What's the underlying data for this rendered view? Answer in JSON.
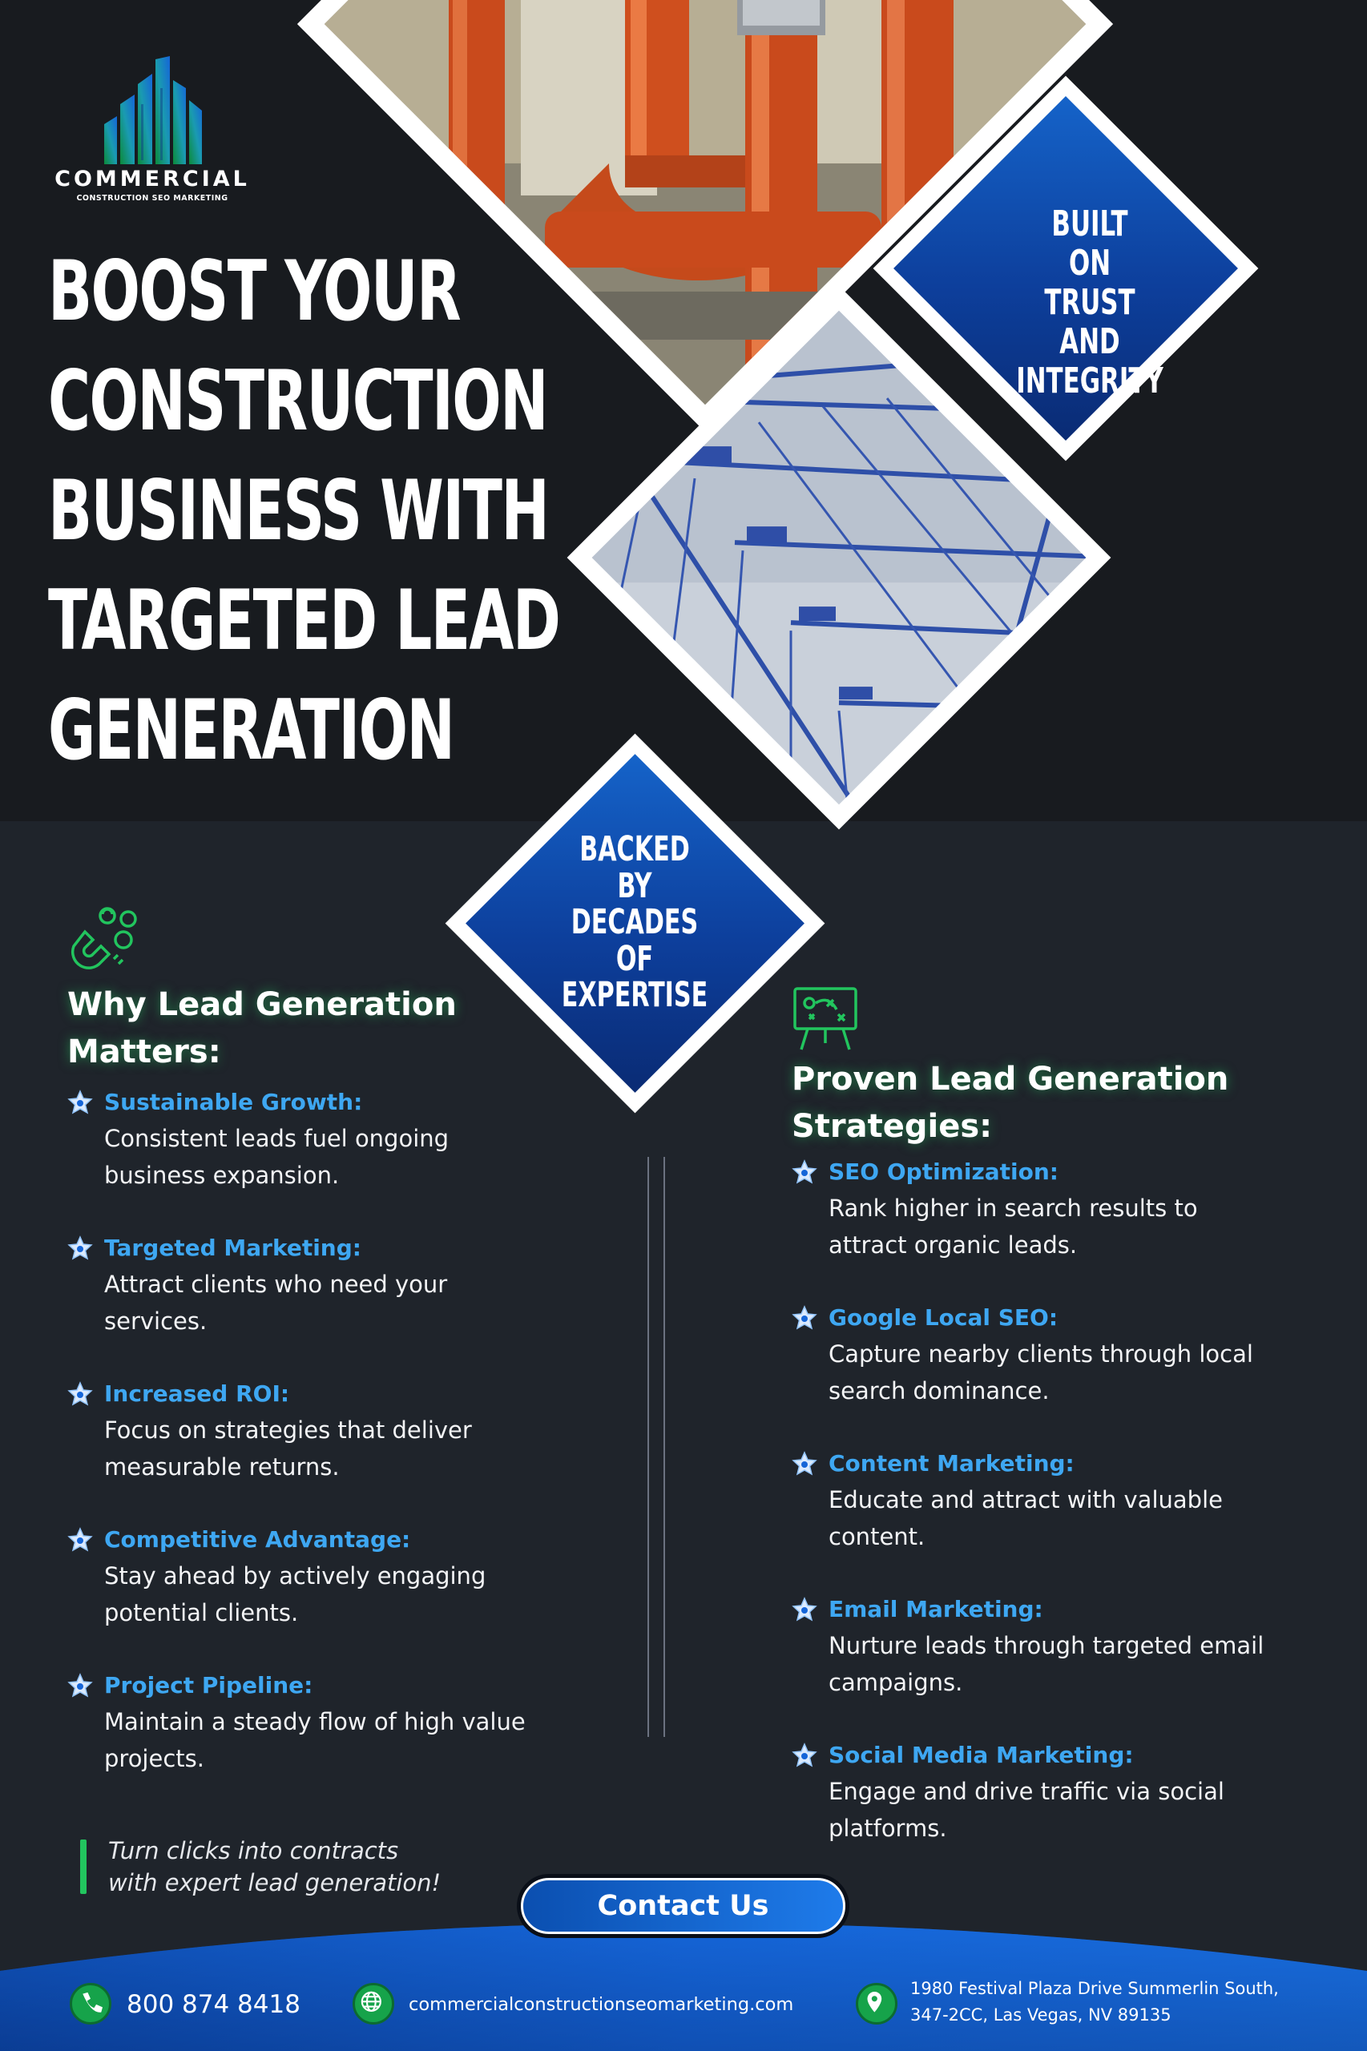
{
  "brand": {
    "name": "COMMERCIAL",
    "tagline": "CONSTRUCTION SEO MARKETING",
    "colors": {
      "accent_blue": "#1563c9",
      "accent_green": "#22c55e",
      "label_blue": "#3ea7f2"
    }
  },
  "hero": {
    "headline_lines": [
      "BOOST YOUR",
      "CONSTRUCTION",
      "BUSINESS WITH",
      "TARGETED LEAD",
      "GENERATION"
    ]
  },
  "badges": {
    "trust": [
      "BUILT",
      "ON",
      "TRUST",
      "AND",
      "INTEGRITY"
    ],
    "expertise": [
      "BACKED",
      "BY",
      "DECADES",
      "OF",
      "EXPERTISE"
    ]
  },
  "why": {
    "icon": "magnet-people-icon",
    "title_lines": [
      "Why Lead Generation",
      "Matters:"
    ],
    "items": [
      {
        "label": "Sustainable Growth:",
        "desc": "Consistent leads fuel ongoing business expansion."
      },
      {
        "label": "Targeted Marketing:",
        "desc": "Attract clients who need your services."
      },
      {
        "label": "Increased ROI:",
        "desc": "Focus on strategies that deliver measurable returns."
      },
      {
        "label": "Competitive Advantage:",
        "desc": "Stay ahead by actively engaging potential clients."
      },
      {
        "label": "Project Pipeline:",
        "desc": "Maintain a steady flow of high value projects."
      }
    ]
  },
  "strategies": {
    "icon": "strategy-board-icon",
    "title_lines": [
      "Proven Lead Generation",
      "Strategies:"
    ],
    "items": [
      {
        "label": "SEO Optimization:",
        "desc": "Rank higher in search results to attract organic leads."
      },
      {
        "label": "Google Local SEO:",
        "desc": "Capture nearby clients through local search dominance."
      },
      {
        "label": "Content Marketing:",
        "desc": "Educate and attract with valuable content."
      },
      {
        "label": "Email Marketing:",
        "desc": "Nurture leads through targeted email campaigns."
      },
      {
        "label": "Social Media Marketing:",
        "desc": "Engage and drive traffic via social platforms."
      }
    ]
  },
  "quote_lines": [
    "Turn clicks into contracts",
    "with expert lead generation!"
  ],
  "cta": {
    "label": "Contact Us"
  },
  "footer": {
    "phone": "800 874 8418",
    "website": "commercialconstructionseomarketing.com",
    "address_lines": [
      "1980 Festival Plaza Drive Summerlin South,",
      "347-2CC, Las Vegas, NV 89135"
    ]
  }
}
